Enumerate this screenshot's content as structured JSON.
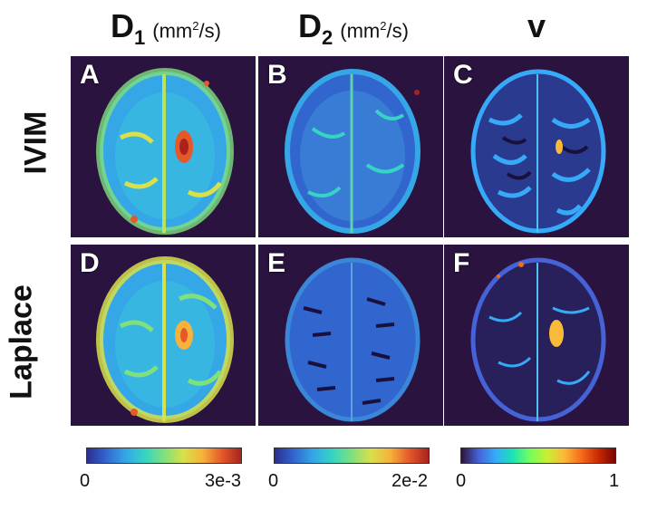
{
  "headers": [
    {
      "symbol": "D",
      "subscript": "1",
      "unit_prefix": "(mm",
      "unit_exp": "2",
      "unit_suffix": "/s)"
    },
    {
      "symbol": "D",
      "subscript": "2",
      "unit_prefix": "(mm",
      "unit_exp": "2",
      "unit_suffix": "/s)"
    },
    {
      "symbol": "v",
      "subscript": "",
      "unit_prefix": "",
      "unit_exp": "",
      "unit_suffix": ""
    }
  ],
  "row_labels": [
    "IVIM",
    "Laplace"
  ],
  "panels": [
    "A",
    "B",
    "C",
    "D",
    "E",
    "F"
  ],
  "colorbars": [
    {
      "min": "0",
      "max": "3e-3"
    },
    {
      "min": "0",
      "max": "2e-2"
    },
    {
      "min": "0",
      "max": "1"
    }
  ],
  "colors": {
    "panel_background": "#2b1340"
  }
}
